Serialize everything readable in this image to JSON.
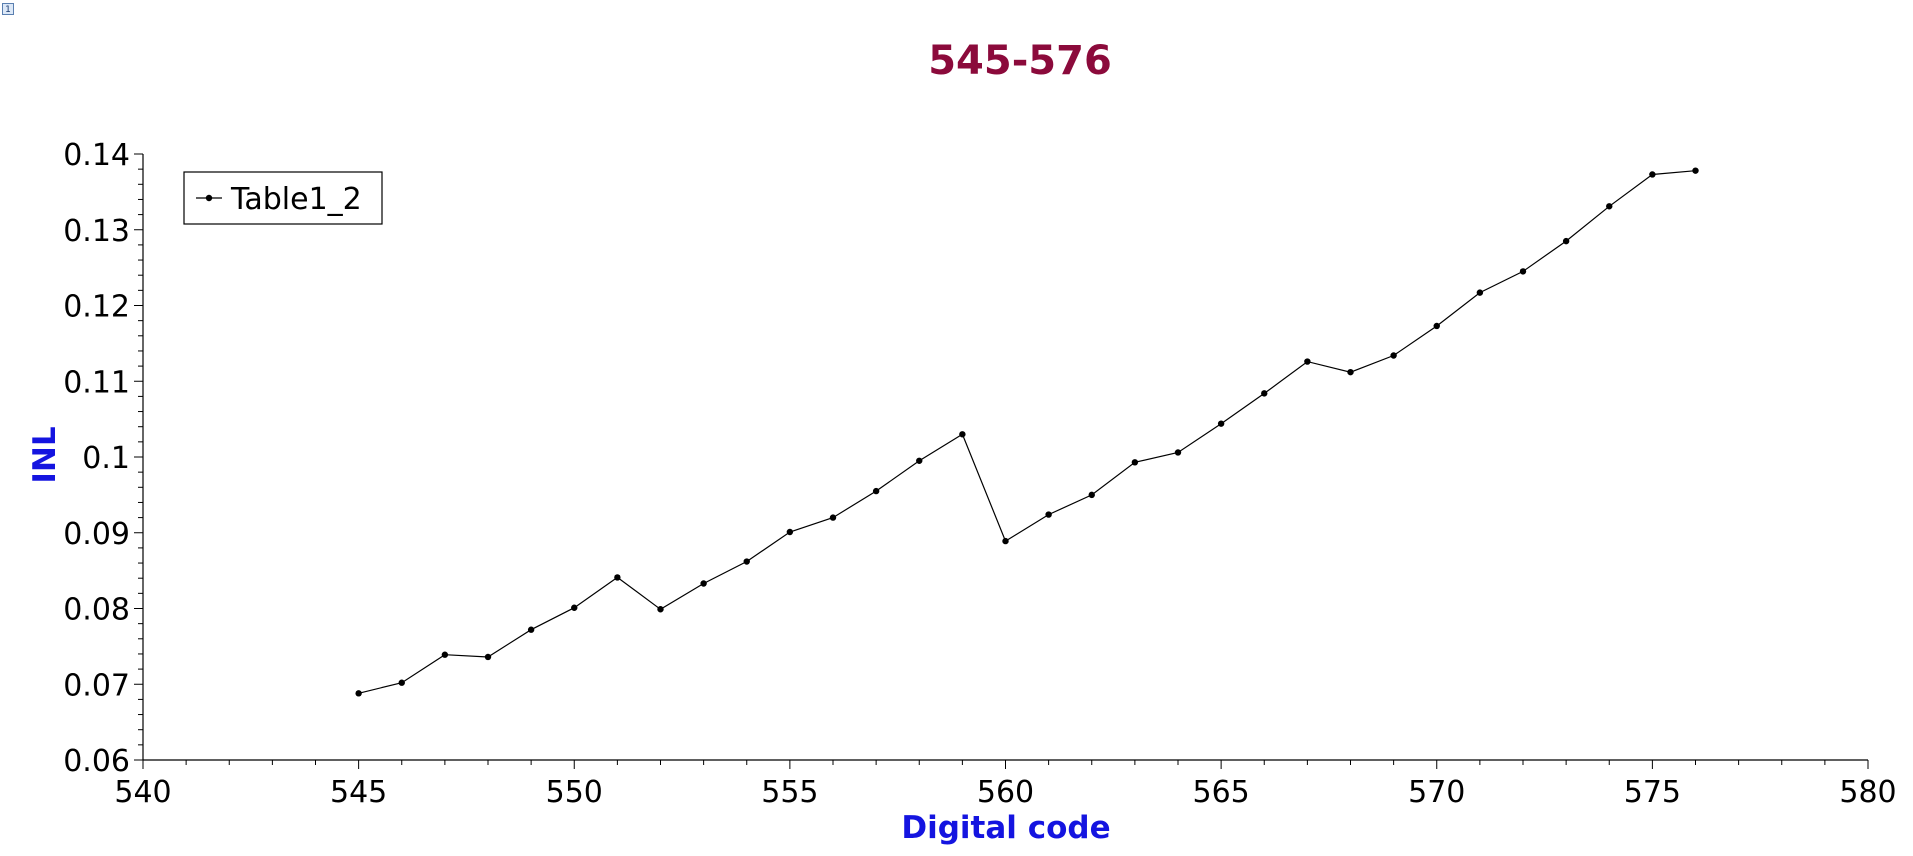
{
  "page": {
    "badge": "1"
  },
  "chart_data": {
    "type": "line",
    "title": "545-576",
    "xlabel": "Digital code",
    "ylabel": "INL",
    "xlim": [
      540,
      580
    ],
    "ylim": [
      0.06,
      0.14
    ],
    "x_ticks": [
      540,
      545,
      550,
      555,
      560,
      565,
      570,
      575,
      580
    ],
    "x_tick_labels": [
      "540",
      "545",
      "550",
      "555",
      "560",
      "565",
      "570",
      "575",
      "580"
    ],
    "y_ticks": [
      0.06,
      0.07,
      0.08,
      0.09,
      0.1,
      0.11,
      0.12,
      0.13,
      0.14
    ],
    "y_tick_labels": [
      "0.06",
      "0.07",
      "0.08",
      "0.09",
      "0.1",
      "0.11",
      "0.12",
      "0.13",
      "0.14"
    ],
    "grid": false,
    "legend_position": "top-left",
    "colors": {
      "title": "#8b0a3b",
      "axis_label": "#1414e0",
      "series": "#000000"
    },
    "series": [
      {
        "name": "Table1_2",
        "x": [
          545,
          546,
          547,
          548,
          549,
          550,
          551,
          552,
          553,
          554,
          555,
          556,
          557,
          558,
          559,
          560,
          561,
          562,
          563,
          564,
          565,
          566,
          567,
          568,
          569,
          570,
          571,
          572,
          573,
          574,
          575,
          576
        ],
        "y": [
          0.0688,
          0.0702,
          0.0739,
          0.0736,
          0.0772,
          0.0801,
          0.0841,
          0.0799,
          0.0833,
          0.0862,
          0.0901,
          0.092,
          0.0955,
          0.0995,
          0.103,
          0.0889,
          0.0924,
          0.095,
          0.0993,
          0.1006,
          0.1044,
          0.1084,
          0.1126,
          0.1112,
          0.1134,
          0.1173,
          0.1217,
          0.1245,
          0.1285,
          0.1331,
          0.1373,
          0.1378
        ]
      }
    ]
  }
}
